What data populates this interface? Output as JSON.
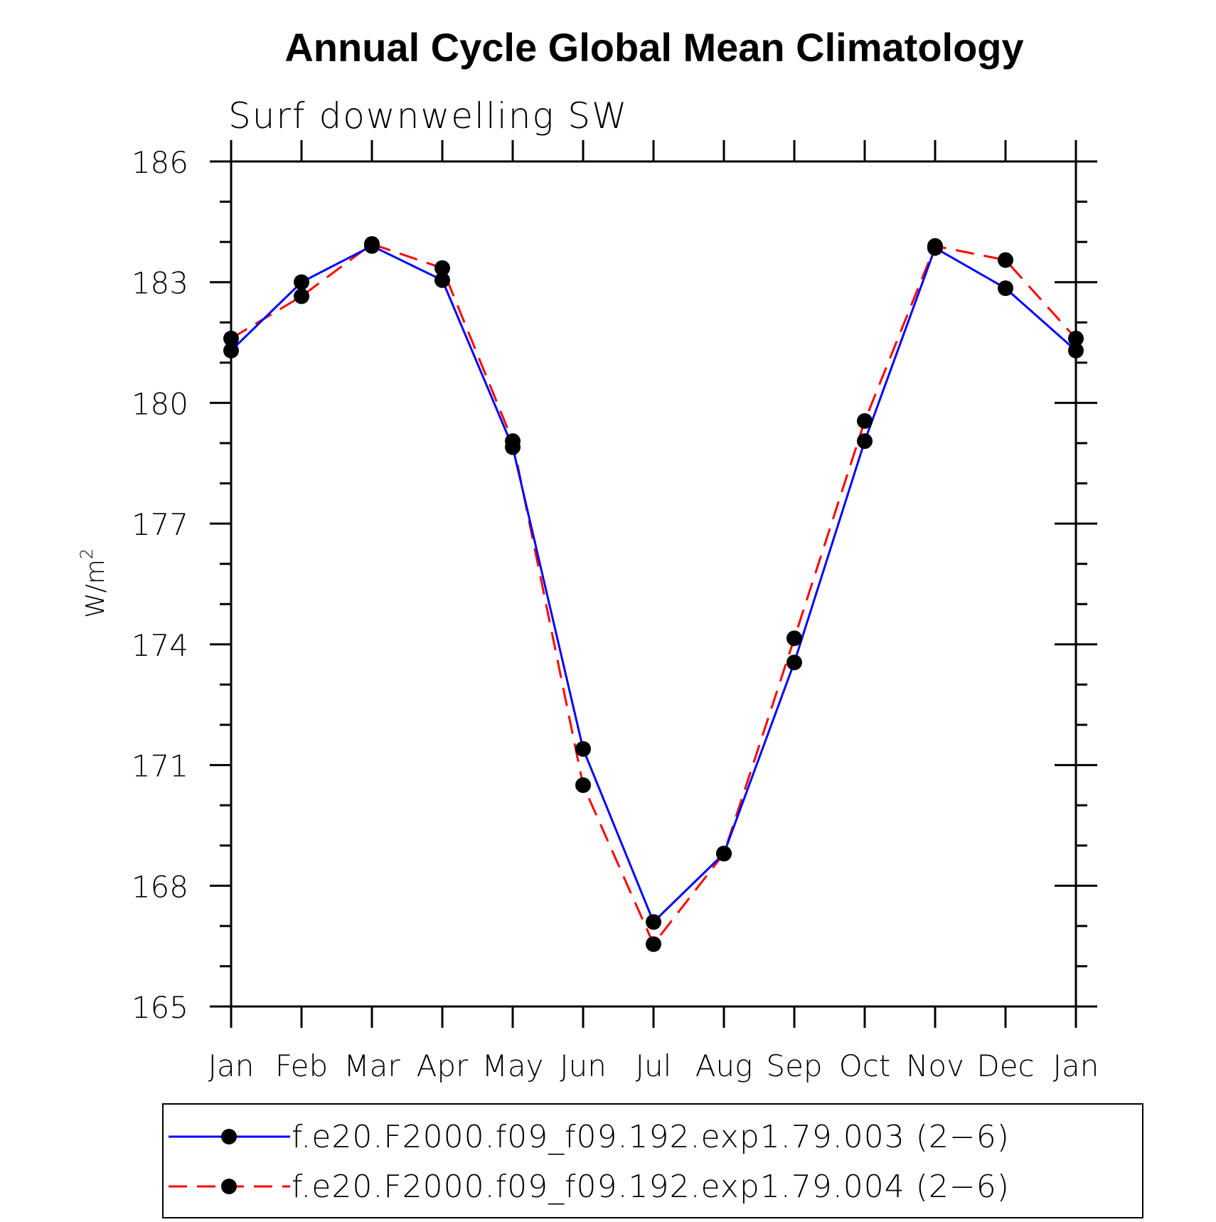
{
  "chart_data": {
    "type": "line",
    "title": "Annual Cycle Global Mean Climatology",
    "subtitle": "Surf downwelling SW",
    "ylabel": "W/m",
    "ylabel_superscript": "2",
    "categories": [
      "Jan",
      "Feb",
      "Mar",
      "Apr",
      "May",
      "Jun",
      "Jul",
      "Aug",
      "Sep",
      "Oct",
      "Nov",
      "Dec",
      "Jan"
    ],
    "ylim": [
      165,
      186
    ],
    "yticks": [
      165,
      168,
      171,
      174,
      177,
      180,
      183,
      186
    ],
    "ytick_labels": [
      "165",
      "168",
      "171",
      "174",
      "177",
      "180",
      "183",
      "186"
    ],
    "y_minor_step": 1,
    "grid": false,
    "legend_position": "bottom",
    "series": [
      {
        "name": "f.e20.F2000.f09_f09.192.exp1.79.003 (2−6)",
        "color": "#0000ff",
        "dash": "solid",
        "marker": "filled-circle",
        "values": [
          181.3,
          183.0,
          183.9,
          183.05,
          178.9,
          171.4,
          167.1,
          168.8,
          173.55,
          179.05,
          183.85,
          182.85,
          181.3
        ]
      },
      {
        "name": "f.e20.F2000.f09_f09.192.exp1.79.004 (2−6)",
        "color": "#ff0000",
        "dash": "dashed",
        "marker": "filled-circle",
        "values": [
          181.6,
          182.65,
          183.95,
          183.35,
          179.05,
          170.5,
          166.55,
          168.8,
          174.15,
          179.55,
          183.9,
          183.55,
          181.6
        ]
      }
    ],
    "marker_color": "#000000"
  }
}
